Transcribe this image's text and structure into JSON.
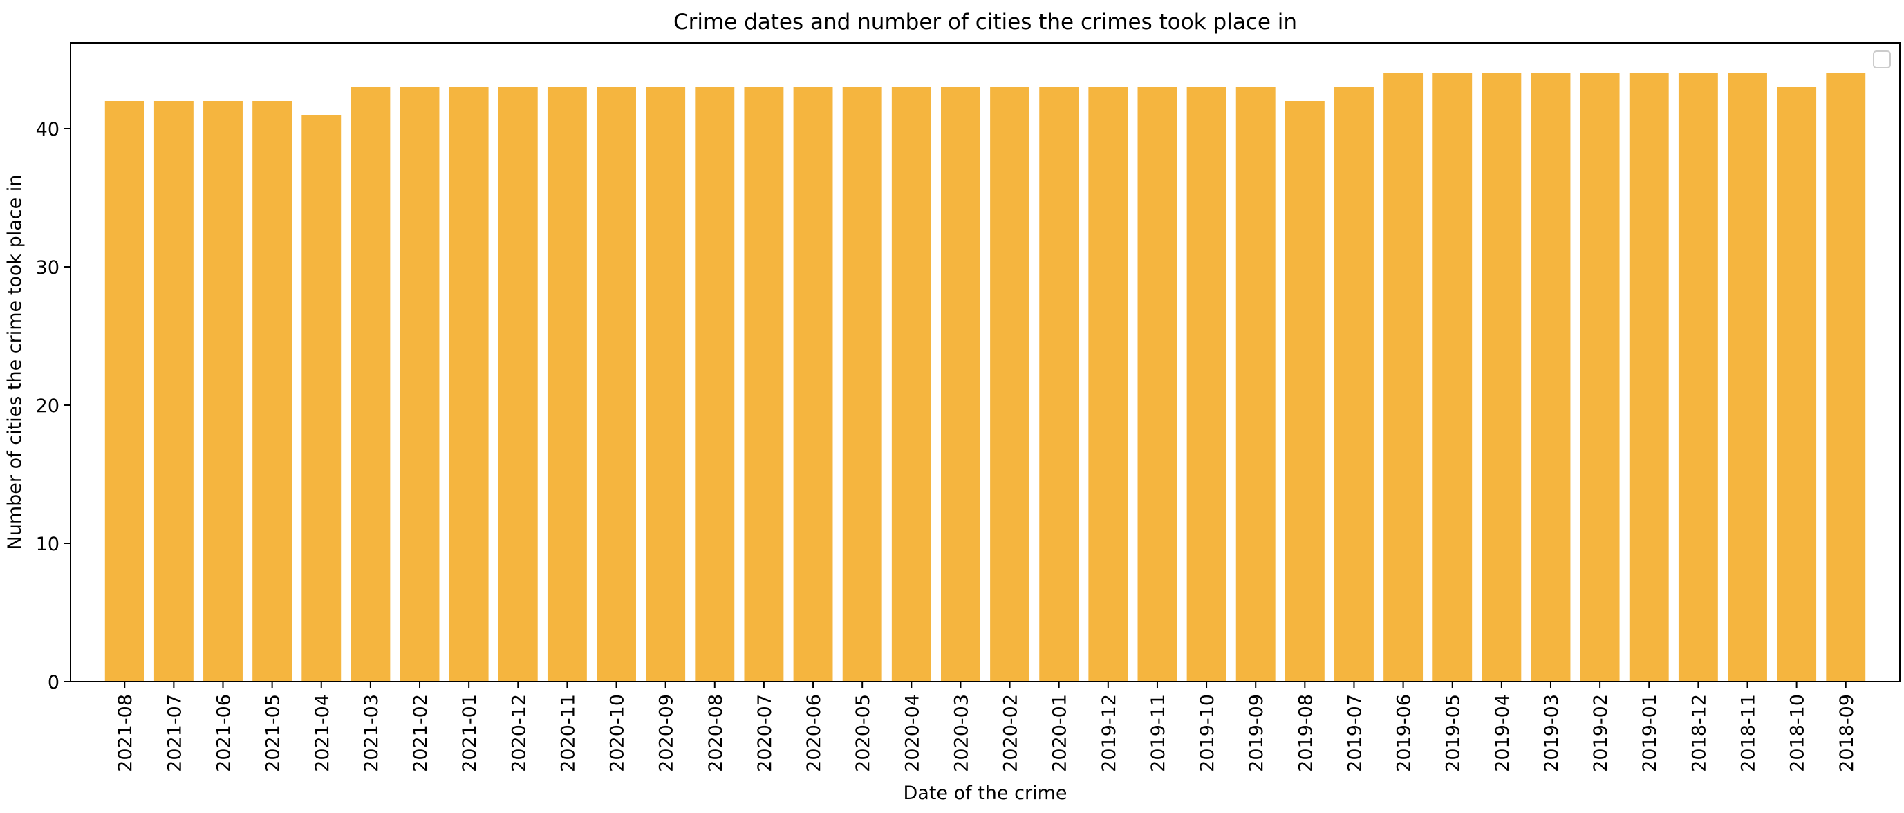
{
  "chart_data": {
    "type": "bar",
    "title": "Crime dates and number of cities the crimes took place in",
    "xlabel": "Date of the crime",
    "ylabel": "Number of cities the crime took place in",
    "categories": [
      "2021-08",
      "2021-07",
      "2021-06",
      "2021-05",
      "2021-04",
      "2021-03",
      "2021-02",
      "2021-01",
      "2020-12",
      "2020-11",
      "2020-10",
      "2020-09",
      "2020-08",
      "2020-07",
      "2020-06",
      "2020-05",
      "2020-04",
      "2020-03",
      "2020-02",
      "2020-01",
      "2019-12",
      "2019-11",
      "2019-10",
      "2019-09",
      "2019-08",
      "2019-07",
      "2019-06",
      "2019-05",
      "2019-04",
      "2019-03",
      "2019-02",
      "2019-01",
      "2018-12",
      "2018-11",
      "2018-10",
      "2018-09"
    ],
    "values": [
      42,
      42,
      42,
      42,
      41,
      43,
      43,
      43,
      43,
      43,
      43,
      43,
      43,
      43,
      43,
      43,
      43,
      43,
      43,
      43,
      43,
      43,
      43,
      43,
      42,
      43,
      44,
      44,
      44,
      44,
      44,
      44,
      44,
      44,
      43,
      44
    ],
    "ylim": [
      0,
      46.2
    ],
    "yticks": [
      0,
      10,
      20,
      30,
      40
    ],
    "bar_color": "#f5b53f",
    "legend": "top-right",
    "grid": false
  }
}
